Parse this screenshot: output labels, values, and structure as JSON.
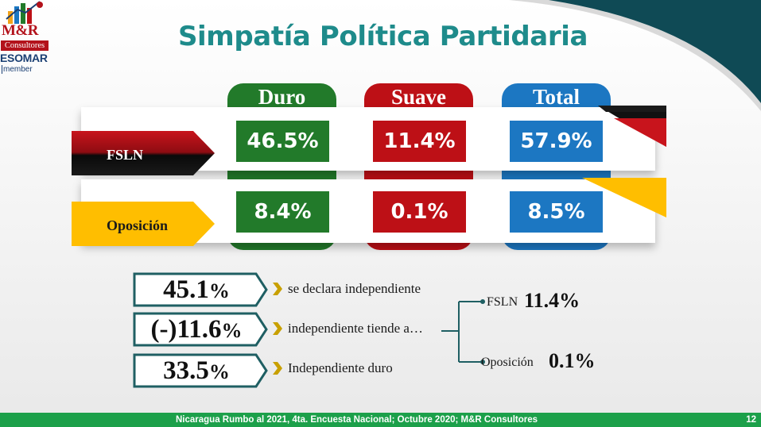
{
  "logo": {
    "brand": "M&R",
    "sub": "Consultores",
    "org": "ESOMAR",
    "member": "member"
  },
  "title": "Simpatía  Política Partidaria",
  "columns": {
    "duro": "Duro",
    "suave": "Suave",
    "total": "Total"
  },
  "rows": {
    "fsln": {
      "label": "FSLN",
      "duro": "46.5%",
      "suave": "11.4%",
      "total": "57.9%"
    },
    "oposicion": {
      "label": "Oposición",
      "duro": "8.4%",
      "suave": "0.1%",
      "total": "8.5%"
    }
  },
  "breakdown": [
    {
      "number": "45.1",
      "unit": "%",
      "text": "se declara independiente"
    },
    {
      "number": "(-)11.6",
      "unit": "%",
      "text": "independiente tiende a…"
    },
    {
      "number": "33.5",
      "unit": "%",
      "text": "Independiente duro"
    }
  ],
  "leaning": {
    "fsln_label": "FSLN",
    "fsln_value": "11.4%",
    "op_label": "Oposición",
    "op_value": "0.1%"
  },
  "footer": {
    "text": "Nicaragua Rumbo al 2021, 4ta. Encuesta Nacional; Octubre 2020; M&R Consultores",
    "page": "12"
  },
  "colors": {
    "green": "#227a2a",
    "red": "#bd1016",
    "blue": "#1c77c2",
    "teal": "#1e8b8b",
    "yellow": "#ffbe00",
    "footer": "#1ca04a"
  }
}
